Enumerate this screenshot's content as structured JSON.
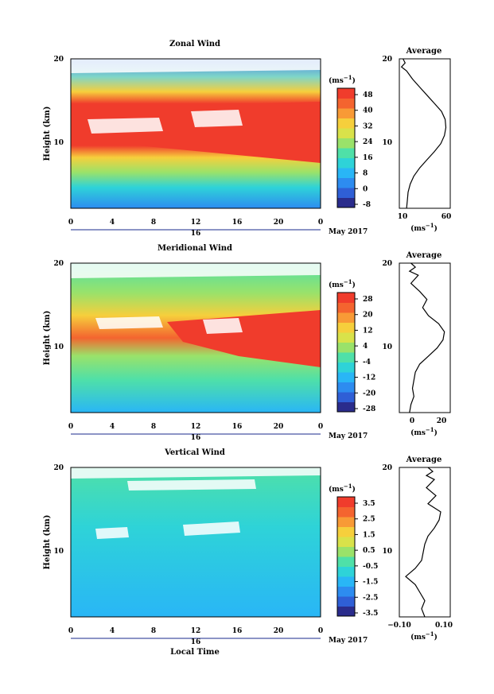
{
  "colors": {
    "scale": [
      "#2a2c8c",
      "#2f5fd6",
      "#2d8cf0",
      "#29b6f6",
      "#2ed3d8",
      "#4fe0a8",
      "#9ae26a",
      "#d9e24a",
      "#f6cf3c",
      "#f89a36",
      "#f4642f",
      "#f03c2c"
    ]
  },
  "chart_data": [
    {
      "type": "heatmap",
      "title": "Zonal Wind",
      "ylabel": "Height (km)",
      "y_ticks": [
        "20",
        "10"
      ],
      "x_ticks": [
        "0",
        "4",
        "8",
        "12",
        "16",
        "20",
        "0"
      ],
      "x_range": [
        0,
        24
      ],
      "y_range": [
        1.5,
        20
      ],
      "date_labels": [
        "16"
      ],
      "month_label": "May 2017",
      "colorbar": {
        "unit": "(ms",
        "unit_exp": "−1",
        "unit_close": ")",
        "labels": [
          "48",
          "40",
          "32",
          "24",
          "16",
          "8",
          "0",
          "-8"
        ],
        "range": [
          -12,
          52
        ]
      },
      "profile": {
        "title": "Average",
        "x_ticks": [
          "10",
          "60"
        ],
        "x_unit": "(ms",
        "x_unit_exp": "−1",
        "x_unit_close": ")",
        "y_ticks": [
          "20",
          "10"
        ],
        "x_range": [
          0,
          70
        ],
        "points": [
          [
            10,
            1.5
          ],
          [
            11,
            2.5
          ],
          [
            12,
            3.5
          ],
          [
            15,
            4.5
          ],
          [
            20,
            5.5
          ],
          [
            28,
            6.5
          ],
          [
            38,
            7.5
          ],
          [
            48,
            8.5
          ],
          [
            57,
            9.5
          ],
          [
            62,
            10.5
          ],
          [
            64,
            11.5
          ],
          [
            63,
            12.5
          ],
          [
            58,
            13.5
          ],
          [
            48,
            14.5
          ],
          [
            38,
            15.5
          ],
          [
            28,
            16.5
          ],
          [
            18,
            17.5
          ],
          [
            10,
            18.5
          ],
          [
            3,
            19
          ],
          [
            8,
            19.5
          ],
          [
            5,
            20
          ]
        ]
      }
    },
    {
      "type": "heatmap",
      "title": "Meridional Wind",
      "ylabel": "Height (km)",
      "y_ticks": [
        "20",
        "10"
      ],
      "x_ticks": [
        "0",
        "4",
        "8",
        "12",
        "16",
        "20",
        "0"
      ],
      "x_range": [
        0,
        24
      ],
      "y_range": [
        1.5,
        20
      ],
      "date_labels": [
        "16"
      ],
      "month_label": "May 2017",
      "colorbar": {
        "unit": "(ms",
        "unit_exp": "−1",
        "unit_close": ")",
        "labels": [
          "28",
          "20",
          "12",
          "4",
          "-4",
          "-12",
          "-20",
          "-28"
        ],
        "range": [
          -32,
          32
        ]
      },
      "profile": {
        "title": "Average",
        "x_ticks": [
          "0",
          "20"
        ],
        "x_unit": "(ms",
        "x_unit_exp": "−1",
        "x_unit_close": ")",
        "y_ticks": [
          "20",
          "10"
        ],
        "x_range": [
          -10,
          25
        ],
        "points": [
          [
            -3,
            1.5
          ],
          [
            -2,
            2.5
          ],
          [
            0,
            3.5
          ],
          [
            -1,
            4.5
          ],
          [
            0,
            5.5
          ],
          [
            1,
            6.5
          ],
          [
            4,
            7.5
          ],
          [
            10,
            8.5
          ],
          [
            16,
            9.5
          ],
          [
            20,
            10.5
          ],
          [
            21,
            11.5
          ],
          [
            17,
            12.5
          ],
          [
            10,
            13.5
          ],
          [
            6,
            14.5
          ],
          [
            9,
            15.5
          ],
          [
            4,
            16.5
          ],
          [
            -2,
            17.5
          ],
          [
            3,
            18.5
          ],
          [
            -3,
            19
          ],
          [
            1,
            19.5
          ],
          [
            -2,
            20
          ]
        ]
      }
    },
    {
      "type": "heatmap",
      "title": "Vertical Wind",
      "ylabel": "Height (km)",
      "xlabel": "Local Time",
      "y_ticks": [
        "20",
        "10"
      ],
      "x_ticks": [
        "0",
        "4",
        "8",
        "12",
        "16",
        "20",
        "0"
      ],
      "x_range": [
        0,
        24
      ],
      "y_range": [
        1.5,
        20
      ],
      "date_labels": [
        "16"
      ],
      "month_label": "May 2017",
      "colorbar": {
        "unit": "(ms",
        "unit_exp": "−1",
        "unit_close": ")",
        "labels": [
          "3.5",
          "2.5",
          "1.5",
          "0.5",
          "-0.5",
          "-1.5",
          "-2.5",
          "-3.5"
        ],
        "range": [
          -4,
          4
        ]
      },
      "profile": {
        "title": "Average",
        "x_ticks": [
          "−0.10",
          "0.10"
        ],
        "x_unit": "(ms",
        "x_unit_exp": "−1",
        "x_unit_close": ")",
        "y_ticks": [
          "20",
          "10"
        ],
        "x_range": [
          -0.16,
          0.16
        ],
        "points": [
          [
            0.0,
            1.5
          ],
          [
            -0.02,
            2.5
          ],
          [
            0.0,
            3.5
          ],
          [
            -0.03,
            4.5
          ],
          [
            -0.06,
            5.5
          ],
          [
            -0.12,
            6.5
          ],
          [
            -0.06,
            7.5
          ],
          [
            -0.02,
            8.5
          ],
          [
            -0.01,
            9.5
          ],
          [
            0.0,
            10.5
          ],
          [
            0.02,
            11.5
          ],
          [
            0.06,
            12.5
          ],
          [
            0.09,
            13.5
          ],
          [
            0.1,
            14.5
          ],
          [
            0.02,
            15.5
          ],
          [
            0.07,
            16.5
          ],
          [
            0.01,
            17.5
          ],
          [
            0.06,
            18.5
          ],
          [
            0.01,
            19
          ],
          [
            0.05,
            19.5
          ],
          [
            0.02,
            20
          ]
        ]
      }
    }
  ]
}
